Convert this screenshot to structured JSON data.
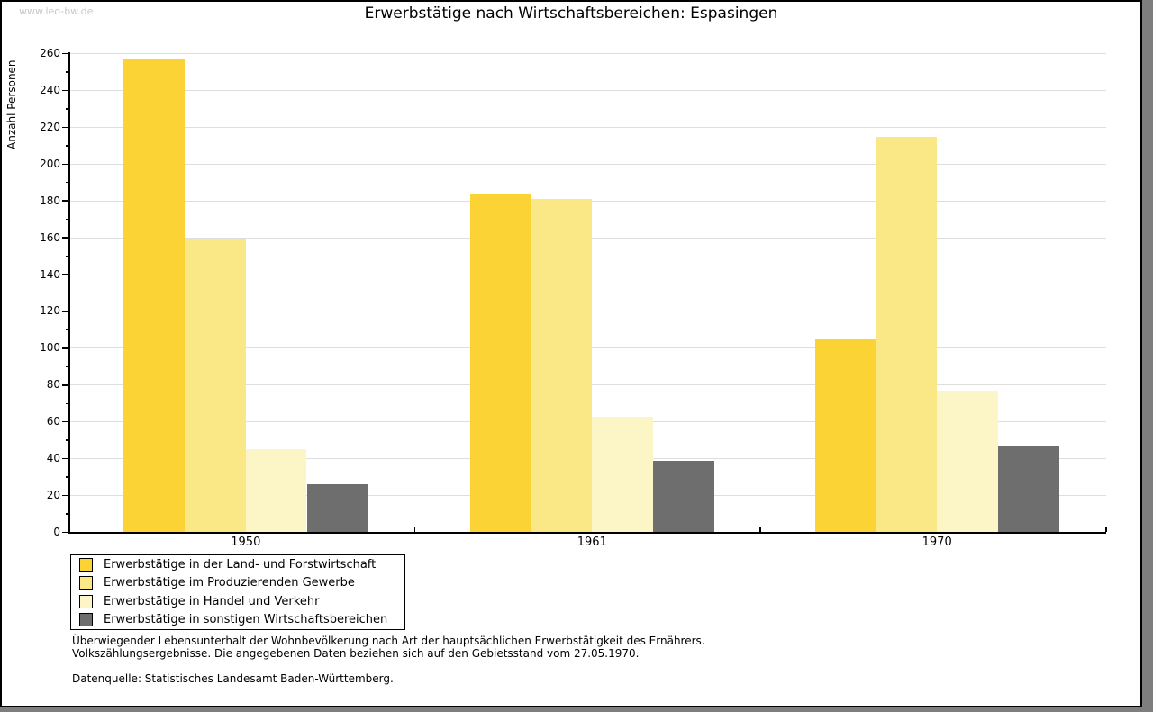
{
  "watermark": "www.leo-bw.de",
  "chart_data": {
    "type": "bar",
    "title": "Erwerbstätige nach Wirtschaftsbereichen: Espasingen",
    "ylabel": "Anzahl Personen",
    "xlabel": "",
    "categories": [
      "1950",
      "1961",
      "1970"
    ],
    "series": [
      {
        "name": "Erwerbstätige in der Land- und Forstwirtschaft",
        "color": "#fbd335",
        "values": [
          257,
          184,
          105
        ]
      },
      {
        "name": "Erwerbstätige im Produzierenden Gewerbe",
        "color": "#fae886",
        "values": [
          159,
          181,
          215
        ]
      },
      {
        "name": "Erwerbstätige in Handel und Verkehr",
        "color": "#fcf6c6",
        "values": [
          45,
          63,
          77
        ]
      },
      {
        "name": "Erwerbstätige in sonstigen Wirtschaftsbereichen",
        "color": "#6e6e6e",
        "values": [
          26,
          39,
          47
        ]
      }
    ],
    "ylim": [
      0,
      260
    ],
    "ytick_step": 20,
    "ytick_minor_step": 10,
    "grid": true,
    "legend_position": "bottom-left"
  },
  "notes": {
    "line1": "Überwiegender Lebensunterhalt der Wohnbevölkerung nach Art der hauptsächlichen Erwerbstätigkeit des Ernährers.",
    "line2": "Volkszählungsergebnisse. Die angegebenen Daten beziehen sich auf den Gebietsstand vom 27.05.1970.",
    "source": "Datenquelle: Statistisches Landesamt Baden-Württemberg."
  }
}
